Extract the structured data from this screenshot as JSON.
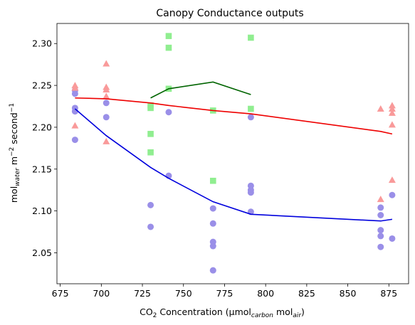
{
  "chart_data": {
    "type": "scatter",
    "title": "Canopy Conductance outputs",
    "xlabel": {
      "main": "CO",
      "sub2": "2",
      "rest": " Concentration (μmol",
      "sub_carbon": "carbon",
      "mid": " mol",
      "sub_air": "air",
      "close": ")"
    },
    "ylabel": {
      "main": "mol",
      "sub_water": "water",
      "mid": " m",
      "sup1": "−2",
      "mid2": " second",
      "sup2": "−1"
    },
    "xlim": [
      673,
      887
    ],
    "ylim": [
      2.013,
      2.324
    ],
    "x_ticks": [
      {
        "value": 675,
        "label": "675"
      },
      {
        "value": 700,
        "label": "700"
      },
      {
        "value": 725,
        "label": "725"
      },
      {
        "value": 750,
        "label": "750"
      },
      {
        "value": 775,
        "label": "775"
      },
      {
        "value": 800,
        "label": "800"
      },
      {
        "value": 825,
        "label": "825"
      },
      {
        "value": 850,
        "label": "850"
      },
      {
        "value": 875,
        "label": "875"
      }
    ],
    "y_ticks": [
      {
        "value": 2.05,
        "label": "2.05"
      },
      {
        "value": 2.1,
        "label": "2.10"
      },
      {
        "value": 2.15,
        "label": "2.15"
      },
      {
        "value": 2.2,
        "label": "2.20"
      },
      {
        "value": 2.25,
        "label": "2.25"
      },
      {
        "value": 2.3,
        "label": "2.30"
      }
    ],
    "scatter_series": [
      {
        "marker": "circle",
        "color": "#9a8fe8",
        "points": [
          [
            684,
            2.244
          ],
          [
            684,
            2.24
          ],
          [
            684,
            2.223
          ],
          [
            684,
            2.219
          ],
          [
            684,
            2.185
          ],
          [
            703,
            2.229
          ],
          [
            703,
            2.212
          ],
          [
            730,
            2.107
          ],
          [
            730,
            2.081
          ],
          [
            741,
            2.218
          ],
          [
            741,
            2.142
          ],
          [
            768,
            2.103
          ],
          [
            768,
            2.085
          ],
          [
            768,
            2.063
          ],
          [
            768,
            2.058
          ],
          [
            768,
            2.029
          ],
          [
            791,
            2.212
          ],
          [
            791,
            2.13
          ],
          [
            791,
            2.125
          ],
          [
            791,
            2.122
          ],
          [
            791,
            2.099
          ],
          [
            870,
            2.104
          ],
          [
            870,
            2.095
          ],
          [
            870,
            2.077
          ],
          [
            870,
            2.07
          ],
          [
            870,
            2.057
          ],
          [
            877,
            2.119
          ],
          [
            877,
            2.067
          ]
        ]
      },
      {
        "marker": "triangle",
        "color": "#f99a9a",
        "points": [
          [
            684,
            2.25
          ],
          [
            684,
            2.247
          ],
          [
            684,
            2.202
          ],
          [
            703,
            2.276
          ],
          [
            703,
            2.248
          ],
          [
            703,
            2.245
          ],
          [
            703,
            2.237
          ],
          [
            703,
            2.183
          ],
          [
            870,
            2.222
          ],
          [
            870,
            2.114
          ],
          [
            877,
            2.226
          ],
          [
            877,
            2.222
          ],
          [
            877,
            2.217
          ],
          [
            877,
            2.203
          ],
          [
            877,
            2.137
          ]
        ]
      },
      {
        "marker": "square",
        "color": "#90ee90",
        "points": [
          [
            730,
            2.226
          ],
          [
            730,
            2.223
          ],
          [
            730,
            2.192
          ],
          [
            730,
            2.17
          ],
          [
            741,
            2.309
          ],
          [
            741,
            2.295
          ],
          [
            741,
            2.246
          ],
          [
            768,
            2.22
          ],
          [
            768,
            2.136
          ],
          [
            791,
            2.307
          ],
          [
            791,
            2.222
          ]
        ]
      }
    ],
    "line_series": [
      {
        "color": "#0000dd",
        "points": [
          [
            684,
            2.222
          ],
          [
            703,
            2.19
          ],
          [
            730,
            2.152
          ],
          [
            741,
            2.139
          ],
          [
            768,
            2.111
          ],
          [
            791,
            2.096
          ],
          [
            870,
            2.088
          ],
          [
            877,
            2.09
          ]
        ]
      },
      {
        "color": "#ee0000",
        "points": [
          [
            684,
            2.235
          ],
          [
            703,
            2.234
          ],
          [
            730,
            2.229
          ],
          [
            741,
            2.226
          ],
          [
            768,
            2.22
          ],
          [
            791,
            2.216
          ],
          [
            870,
            2.195
          ],
          [
            877,
            2.192
          ]
        ]
      },
      {
        "color": "#006400",
        "points": [
          [
            730,
            2.235
          ],
          [
            741,
            2.246
          ],
          [
            768,
            2.254
          ],
          [
            791,
            2.239
          ]
        ]
      }
    ]
  }
}
